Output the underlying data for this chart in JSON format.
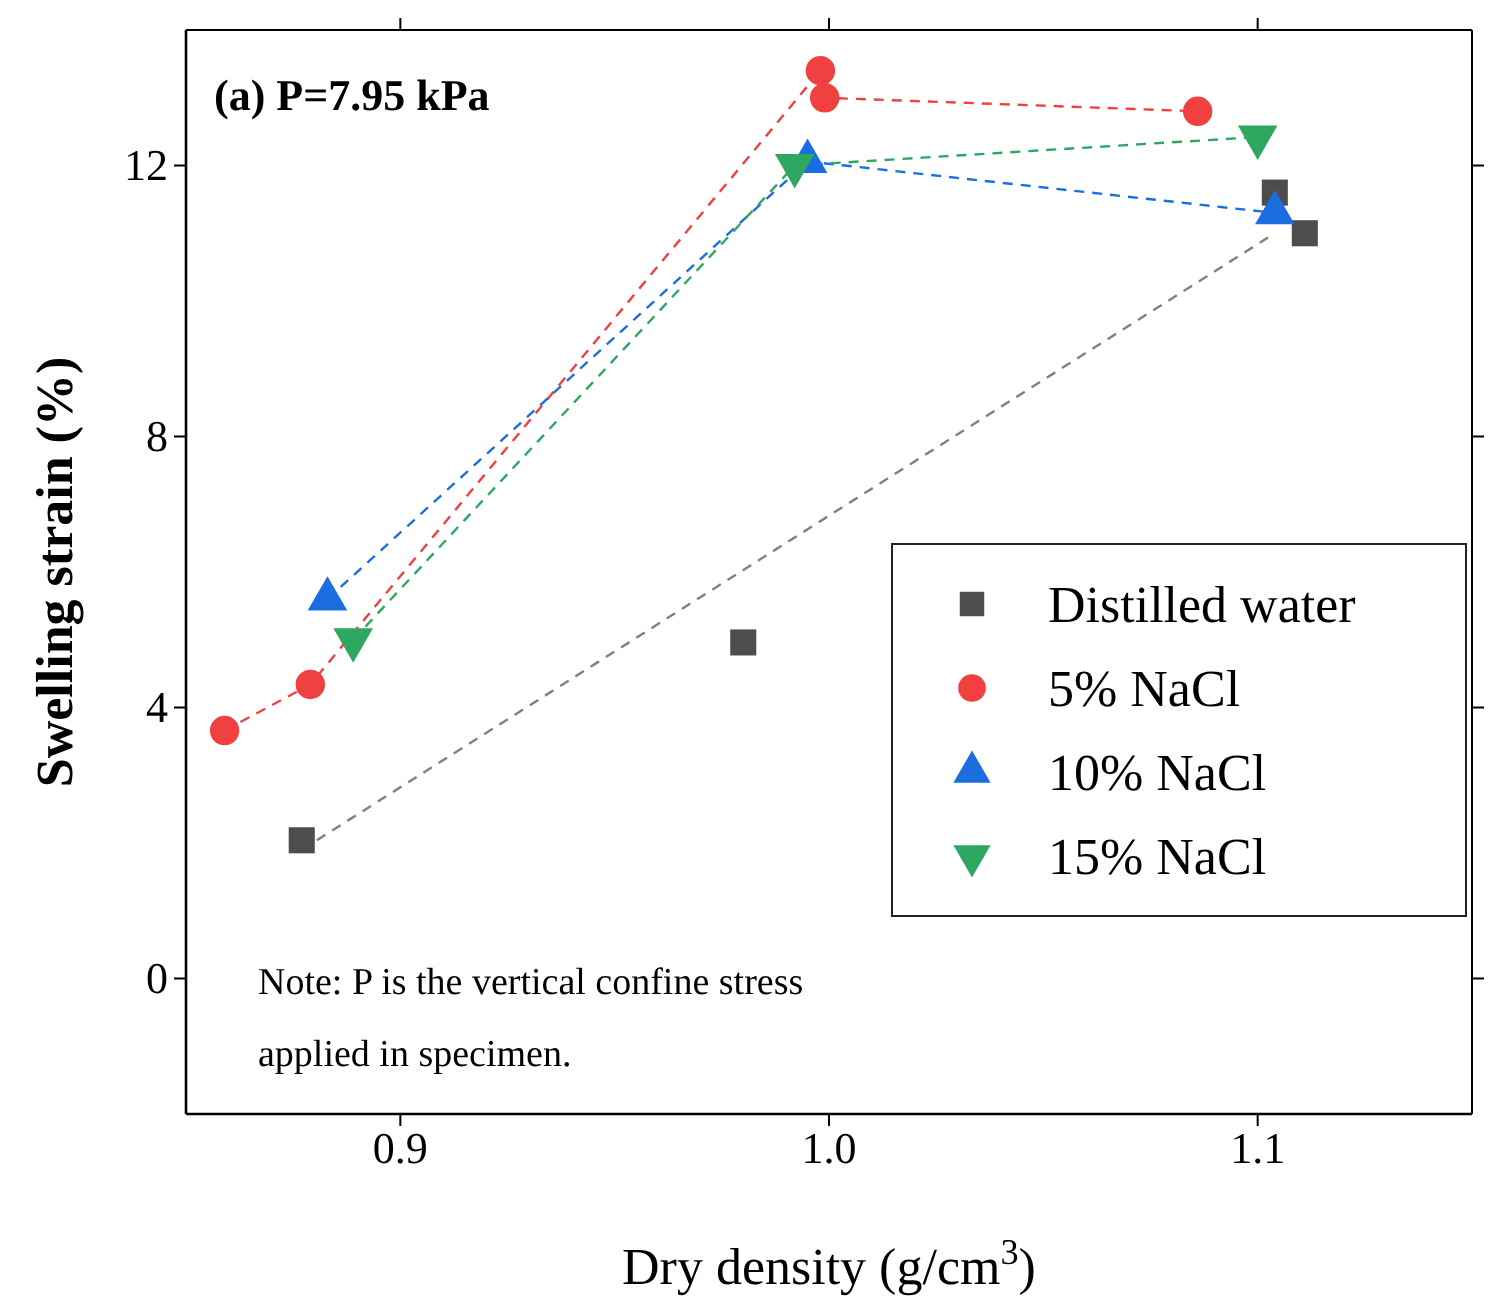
{
  "chart_data": {
    "type": "line",
    "title": "(a) P=7.95 kPa",
    "xlabel": "Dry density (g/cm$^{3}$)",
    "ylabel": "Swelling strain (%)",
    "xlim": [
      0.85,
      1.15
    ],
    "xticks": [
      {
        "value": 0.9,
        "label": "0.9"
      },
      {
        "value": 1.0,
        "label": "1.0"
      },
      {
        "value": 1.1,
        "label": "1.1"
      }
    ],
    "ylim": [
      -2,
      14
    ],
    "yticks": [
      0,
      4,
      8,
      12
    ],
    "legend": "right",
    "line_style": "dashed",
    "grid": false,
    "annotations": [
      "Note: P is the vertical confine stress applied in specimen."
    ],
    "series": [
      {
        "name": "Distilled water",
        "type": "scatter",
        "marker": "square",
        "color": "#4d4d4d",
        "x": [
          0.877,
          0.98,
          1.104,
          1.111
        ],
        "values": [
          2.04,
          4.96,
          11.6,
          11.0
        ]
      },
      {
        "type": "line",
        "marker": "none",
        "color": "#808080",
        "x": [
          0.877,
          1.104
        ],
        "values": [
          1.9,
          11.0
        ]
      },
      {
        "name": "5% NaCl",
        "type": "line",
        "marker": "circle",
        "color": "#f04040",
        "x": [
          0.859,
          0.879,
          0.998,
          0.999,
          1.086
        ],
        "values": [
          3.66,
          4.34,
          13.4,
          13.0,
          12.8
        ]
      },
      {
        "name": "10% NaCl",
        "type": "line",
        "marker": "triangle",
        "color": "#1a6ee0",
        "x": [
          0.883,
          0.995,
          1.104
        ],
        "values": [
          5.6,
          12.06,
          11.3
        ]
      },
      {
        "name": "15% NaCl",
        "type": "line",
        "marker": "triangle-down",
        "color": "#2ea860",
        "x": [
          0.889,
          0.992,
          1.1
        ],
        "values": [
          5.0,
          12.0,
          12.42
        ]
      }
    ]
  }
}
